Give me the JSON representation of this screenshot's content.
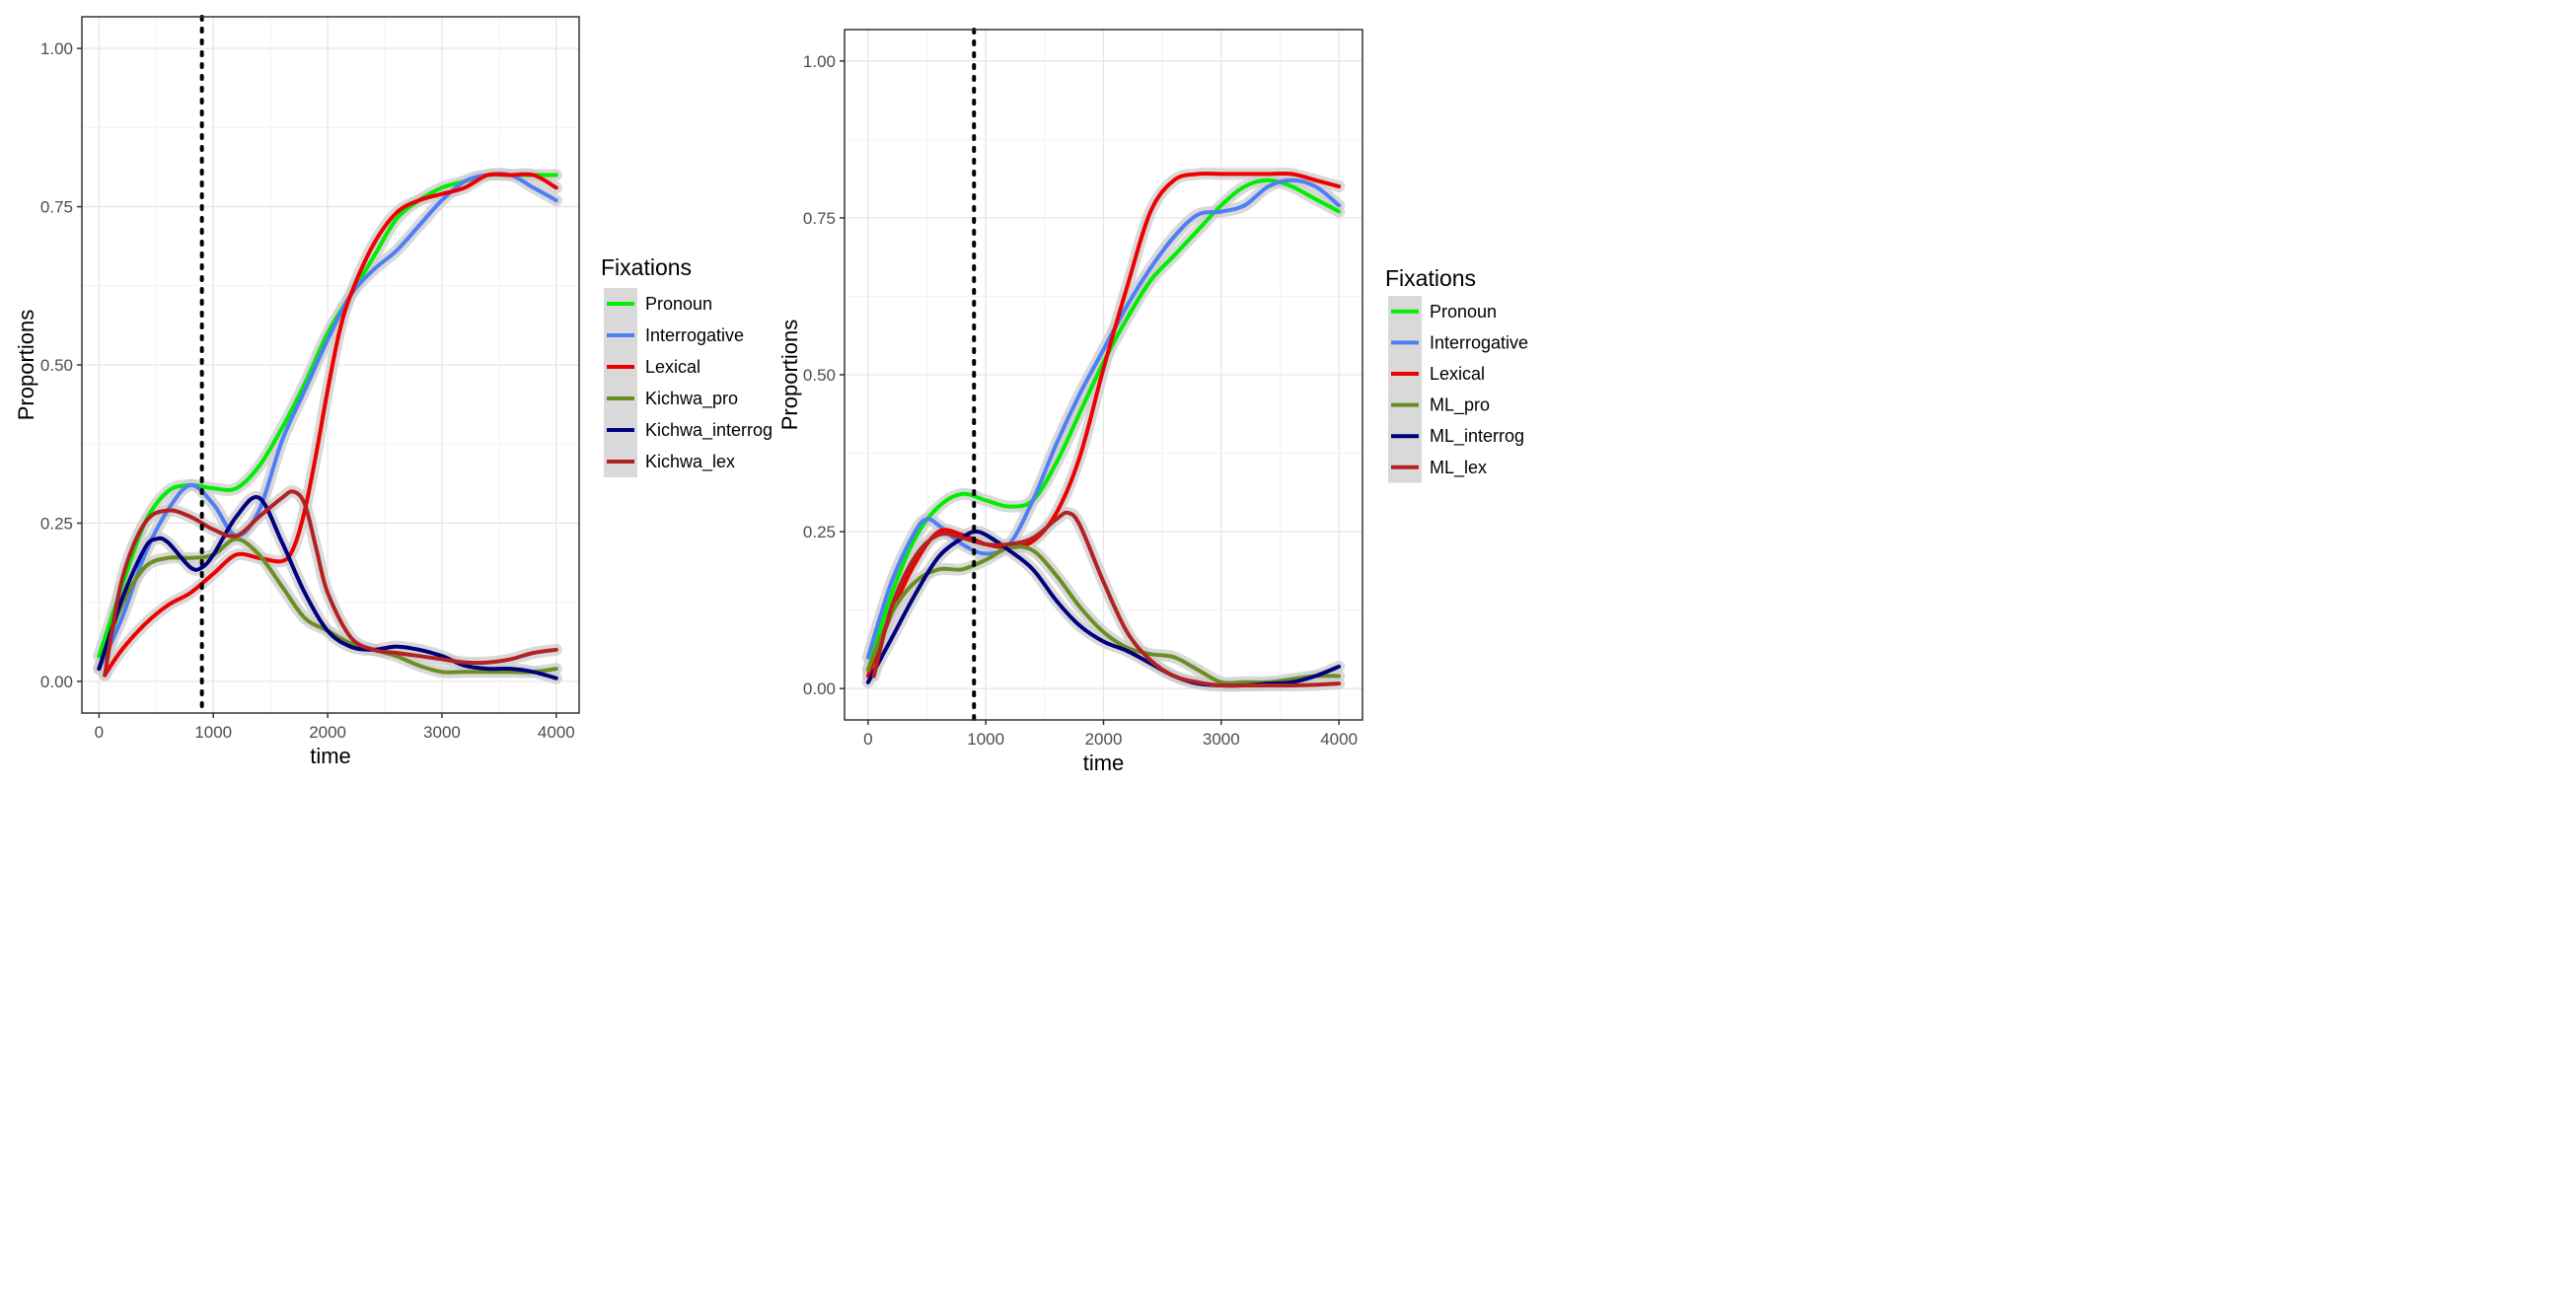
{
  "chart_data": [
    {
      "type": "line",
      "xlabel": "time",
      "ylabel": "Proportions",
      "xlim": [
        -150,
        4200
      ],
      "ylim": [
        -0.05,
        1.05
      ],
      "xticks": [
        0,
        1000,
        2000,
        3000,
        4000
      ],
      "xtick_labels": [
        "0",
        "1000",
        "2000",
        "3000",
        "4000"
      ],
      "yticks": [
        0,
        0.25,
        0.5,
        0.75,
        1.0
      ],
      "ytick_labels": [
        "0.00",
        "0.25",
        "0.50",
        "0.75",
        "1.00"
      ],
      "vline_x": 900,
      "grid": true,
      "legend": {
        "title": "Fixations",
        "placement": "right"
      },
      "series": [
        {
          "name": "Pronoun",
          "color": "#00ee00",
          "x": [
            0,
            200,
            400,
            600,
            800,
            1000,
            1200,
            1400,
            1600,
            1800,
            2000,
            2200,
            2400,
            2600,
            2800,
            3000,
            3200,
            3400,
            3600,
            3800,
            4000
          ],
          "y": [
            0.04,
            0.15,
            0.25,
            0.3,
            0.31,
            0.305,
            0.305,
            0.34,
            0.4,
            0.47,
            0.55,
            0.61,
            0.67,
            0.73,
            0.76,
            0.78,
            0.79,
            0.8,
            0.8,
            0.8,
            0.8
          ]
        },
        {
          "name": "Interrogative",
          "color": "#4f7ff5",
          "x": [
            0,
            200,
            400,
            600,
            800,
            1000,
            1200,
            1400,
            1600,
            1800,
            2000,
            2200,
            2400,
            2600,
            2800,
            3000,
            3200,
            3400,
            3600,
            3800,
            4000
          ],
          "y": [
            0.02,
            0.1,
            0.2,
            0.27,
            0.31,
            0.28,
            0.23,
            0.27,
            0.38,
            0.46,
            0.54,
            0.61,
            0.65,
            0.68,
            0.72,
            0.76,
            0.79,
            0.8,
            0.8,
            0.78,
            0.76
          ]
        },
        {
          "name": "Lexical",
          "color": "#ee0000",
          "x": [
            50,
            200,
            400,
            600,
            800,
            1000,
            1200,
            1400,
            1600,
            1700,
            1800,
            1900,
            2000,
            2100,
            2200,
            2400,
            2600,
            2800,
            3000,
            3200,
            3400,
            3600,
            3800,
            4000
          ],
          "y": [
            0.01,
            0.05,
            0.09,
            0.12,
            0.14,
            0.17,
            0.2,
            0.195,
            0.19,
            0.21,
            0.27,
            0.36,
            0.46,
            0.55,
            0.61,
            0.69,
            0.74,
            0.76,
            0.77,
            0.78,
            0.8,
            0.8,
            0.8,
            0.78
          ]
        },
        {
          "name": "Kichwa_pro",
          "color": "#6b8e23",
          "x": [
            0,
            200,
            400,
            600,
            800,
            1000,
            1200,
            1400,
            1600,
            1800,
            2000,
            2200,
            2400,
            2600,
            2800,
            3000,
            3200,
            3400,
            3600,
            3800,
            4000
          ],
          "y": [
            0.02,
            0.12,
            0.18,
            0.195,
            0.195,
            0.2,
            0.225,
            0.2,
            0.15,
            0.1,
            0.08,
            0.06,
            0.05,
            0.04,
            0.025,
            0.015,
            0.015,
            0.015,
            0.015,
            0.015,
            0.02
          ]
        },
        {
          "name": "Kichwa_interrog",
          "color": "#00007f",
          "x": [
            0,
            200,
            400,
            500,
            600,
            800,
            900,
            1000,
            1200,
            1400,
            1600,
            1800,
            2000,
            2200,
            2400,
            2600,
            2800,
            3000,
            3200,
            3400,
            3600,
            3800,
            4000
          ],
          "y": [
            0.02,
            0.13,
            0.21,
            0.225,
            0.22,
            0.18,
            0.18,
            0.2,
            0.26,
            0.29,
            0.22,
            0.14,
            0.08,
            0.055,
            0.05,
            0.055,
            0.05,
            0.04,
            0.025,
            0.02,
            0.02,
            0.015,
            0.005
          ]
        },
        {
          "name": "Kichwa_lex",
          "color": "#b22222",
          "x": [
            50,
            200,
            400,
            600,
            800,
            1000,
            1200,
            1400,
            1600,
            1700,
            1800,
            1900,
            2000,
            2200,
            2400,
            2600,
            2800,
            3000,
            3200,
            3400,
            3600,
            3800,
            4000
          ],
          "y": [
            0.01,
            0.16,
            0.25,
            0.27,
            0.26,
            0.24,
            0.23,
            0.26,
            0.29,
            0.3,
            0.28,
            0.21,
            0.14,
            0.07,
            0.05,
            0.045,
            0.04,
            0.035,
            0.03,
            0.03,
            0.035,
            0.045,
            0.05
          ]
        }
      ]
    },
    {
      "type": "line",
      "xlabel": "time",
      "ylabel": "Proportions",
      "xlim": [
        -200,
        4200
      ],
      "ylim": [
        -0.05,
        1.05
      ],
      "xticks": [
        0,
        1000,
        2000,
        3000,
        4000
      ],
      "xtick_labels": [
        "0",
        "1000",
        "2000",
        "3000",
        "4000"
      ],
      "yticks": [
        0,
        0.25,
        0.5,
        0.75,
        1.0
      ],
      "ytick_labels": [
        "0.00",
        "0.25",
        "0.50",
        "0.75",
        "1.00"
      ],
      "vline_x": 900,
      "grid": true,
      "legend": {
        "title": "Fixations",
        "placement": "right"
      },
      "series": [
        {
          "name": "Pronoun",
          "color": "#00ee00",
          "x": [
            0,
            200,
            400,
            600,
            800,
            1000,
            1200,
            1400,
            1600,
            1800,
            2000,
            2200,
            2400,
            2600,
            2800,
            3000,
            3200,
            3400,
            3600,
            3800,
            4000
          ],
          "y": [
            0.03,
            0.15,
            0.24,
            0.29,
            0.31,
            0.3,
            0.29,
            0.3,
            0.36,
            0.44,
            0.52,
            0.59,
            0.65,
            0.69,
            0.73,
            0.77,
            0.8,
            0.81,
            0.8,
            0.78,
            0.76
          ]
        },
        {
          "name": "Interrogative",
          "color": "#4f7ff5",
          "x": [
            0,
            200,
            400,
            500,
            600,
            800,
            1000,
            1200,
            1400,
            1600,
            1800,
            2000,
            2200,
            2400,
            2600,
            2800,
            3000,
            3200,
            3400,
            3600,
            3800,
            4000
          ],
          "y": [
            0.05,
            0.17,
            0.25,
            0.27,
            0.26,
            0.23,
            0.215,
            0.23,
            0.3,
            0.39,
            0.47,
            0.54,
            0.61,
            0.67,
            0.72,
            0.755,
            0.76,
            0.77,
            0.8,
            0.81,
            0.8,
            0.77
          ]
        },
        {
          "name": "Lexical",
          "color": "#ee0000",
          "x": [
            0,
            200,
            400,
            600,
            800,
            1000,
            1200,
            1400,
            1600,
            1800,
            2000,
            2200,
            2400,
            2600,
            2800,
            3000,
            3200,
            3400,
            3600,
            3800,
            4000
          ],
          "y": [
            0.02,
            0.12,
            0.2,
            0.25,
            0.245,
            0.23,
            0.225,
            0.235,
            0.28,
            0.37,
            0.51,
            0.64,
            0.76,
            0.81,
            0.82,
            0.82,
            0.82,
            0.82,
            0.82,
            0.81,
            0.8
          ]
        },
        {
          "name": "ML_pro",
          "color": "#6b8e23",
          "x": [
            0,
            200,
            400,
            600,
            800,
            1000,
            1200,
            1400,
            1600,
            1800,
            2000,
            2200,
            2400,
            2600,
            2800,
            3000,
            3200,
            3400,
            3600,
            3800,
            4000
          ],
          "y": [
            0.03,
            0.12,
            0.17,
            0.19,
            0.19,
            0.205,
            0.225,
            0.22,
            0.18,
            0.13,
            0.09,
            0.065,
            0.055,
            0.05,
            0.03,
            0.01,
            0.01,
            0.01,
            0.015,
            0.02,
            0.02
          ]
        },
        {
          "name": "ML_interrog",
          "color": "#00007f",
          "x": [
            0,
            200,
            400,
            600,
            800,
            900,
            1000,
            1200,
            1400,
            1600,
            1800,
            2000,
            2200,
            2400,
            2600,
            2800,
            3000,
            3200,
            3400,
            3600,
            3800,
            4000
          ],
          "y": [
            0.01,
            0.08,
            0.15,
            0.21,
            0.24,
            0.25,
            0.245,
            0.22,
            0.19,
            0.14,
            0.1,
            0.075,
            0.06,
            0.04,
            0.02,
            0.008,
            0.005,
            0.005,
            0.008,
            0.01,
            0.02,
            0.035
          ]
        },
        {
          "name": "ML_lex",
          "color": "#b22222",
          "x": [
            50,
            200,
            400,
            600,
            800,
            1000,
            1200,
            1400,
            1600,
            1700,
            1800,
            2000,
            2200,
            2400,
            2600,
            2800,
            3000,
            3200,
            3400,
            3600,
            3800,
            4000
          ],
          "y": [
            0.02,
            0.13,
            0.21,
            0.245,
            0.24,
            0.23,
            0.23,
            0.24,
            0.27,
            0.28,
            0.26,
            0.17,
            0.09,
            0.045,
            0.02,
            0.01,
            0.005,
            0.005,
            0.005,
            0.005,
            0.006,
            0.008
          ]
        }
      ]
    }
  ]
}
